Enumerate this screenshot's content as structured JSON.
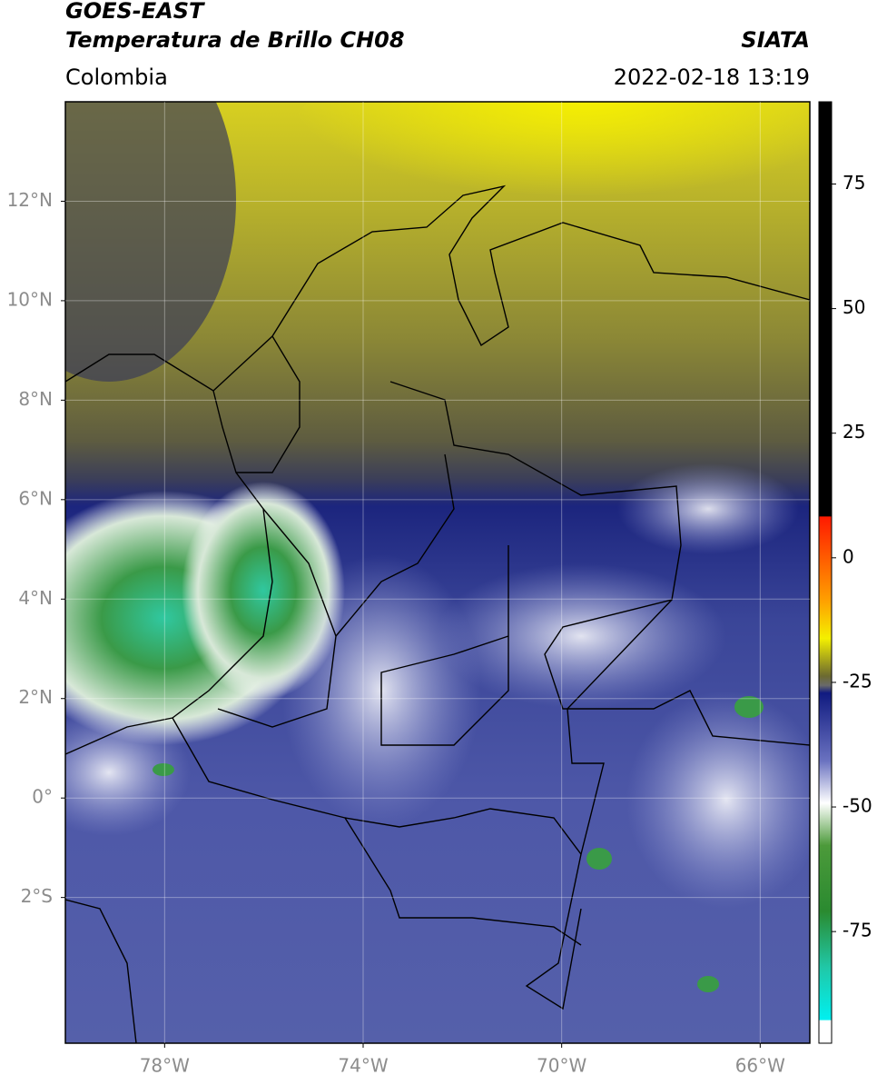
{
  "header": {
    "title": "GOES-EAST",
    "subtitle": "Temperatura de Brillo CH08",
    "source": "SIATA",
    "region": "Colombia",
    "datetime": "2022-02-18 13:19"
  },
  "map": {
    "lon_range": [
      -80,
      -65
    ],
    "lat_range": [
      -4.93,
      14
    ],
    "lat_ticks": [
      {
        "value": 12,
        "label": "12°N"
      },
      {
        "value": 10,
        "label": "10°N"
      },
      {
        "value": 8,
        "label": "8°N"
      },
      {
        "value": 6,
        "label": "6°N"
      },
      {
        "value": 4,
        "label": "4°N"
      },
      {
        "value": 2,
        "label": "2°N"
      },
      {
        "value": 0,
        "label": "0°"
      },
      {
        "value": -2,
        "label": "2°S"
      }
    ],
    "lon_ticks": [
      {
        "value": -78,
        "label": "78°W"
      },
      {
        "value": -74,
        "label": "74°W"
      },
      {
        "value": -70,
        "label": "70°W"
      },
      {
        "value": -66,
        "label": "66°W"
      }
    ],
    "grid": true
  },
  "colorbar": {
    "range": [
      -97.4,
      91.5
    ],
    "ticks": [
      75,
      50,
      25,
      0,
      -25,
      -50,
      -75
    ]
  }
}
